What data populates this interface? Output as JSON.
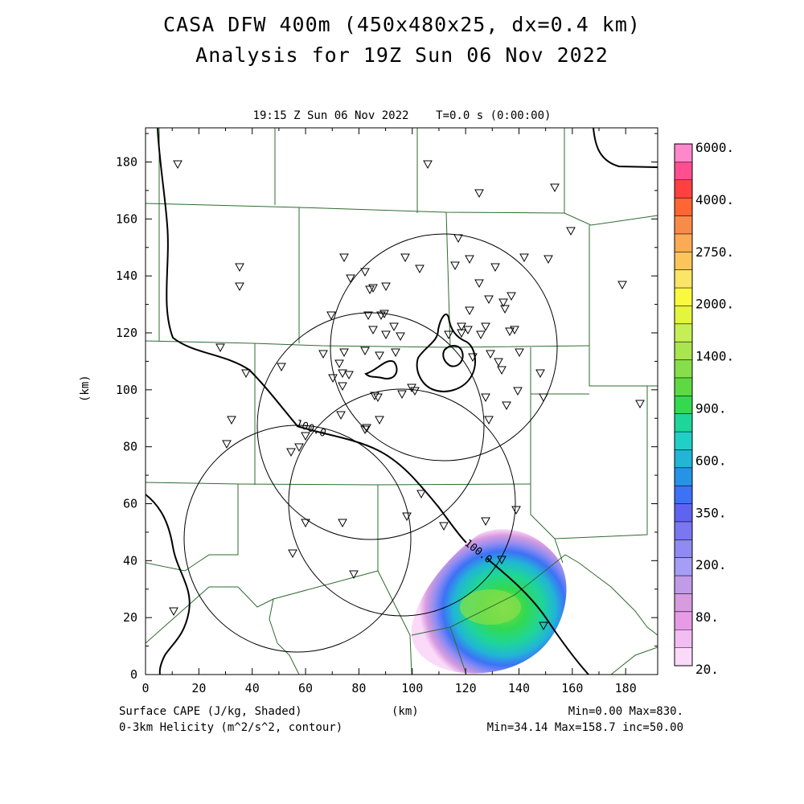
{
  "header": {
    "title_line1": "CASA DFW 400m (450x480x25, dx=0.4 km)",
    "title_line2": "Analysis for 19Z Sun 06 Nov 2022",
    "valid_time": "19:15 Z Sun 06 Nov 2022    T=0.0 s (0:00:00)"
  },
  "axes": {
    "x_label": "(km)",
    "y_label": "(km)",
    "x_ticks": [
      "0",
      "20",
      "40",
      "60",
      "80",
      "100",
      "120",
      "140",
      "160",
      "180"
    ],
    "y_ticks": [
      "0",
      "20",
      "40",
      "60",
      "80",
      "100",
      "120",
      "140",
      "160",
      "180"
    ],
    "range_km": [
      0,
      192
    ]
  },
  "footer": {
    "field1": "Surface CAPE (J/kg, Shaded)",
    "field2": "0-3km Helicity (m^2/s^2, contour)",
    "stats1": "Min=0.00 Max=830.",
    "stats2": "Min=34.14 Max=158.7 inc=50.00"
  },
  "colorbar": {
    "labels": [
      "6000.",
      "4000.",
      "2750.",
      "2000.",
      "1400.",
      "900.",
      "600.",
      "350.",
      "200.",
      "80.",
      "20."
    ],
    "colors": [
      "#ff88cc",
      "#ff4f8f",
      "#ff4040",
      "#ff6633",
      "#f98b4a",
      "#fbab55",
      "#fbc55c",
      "#fbe466",
      "#fbf840",
      "#e3f53d",
      "#c6ef56",
      "#a9e54f",
      "#86de4a",
      "#5fd943",
      "#33d94f",
      "#1ed59a",
      "#21cfc6",
      "#21b5d6",
      "#2694e6",
      "#3c72f6",
      "#5f64f0",
      "#7b77ef",
      "#8f8bf2",
      "#a59ef4",
      "#c09be7",
      "#d79bdf",
      "#e79be6",
      "#f2bdf2",
      "#fbdaf9"
    ]
  },
  "map": {
    "colors": {
      "counties": "#2e6b2e",
      "contour": "#000000",
      "radar_rings": "#000000"
    },
    "contour_labels": [
      "100.0",
      "100.0"
    ],
    "cape_max": "830."
  }
}
